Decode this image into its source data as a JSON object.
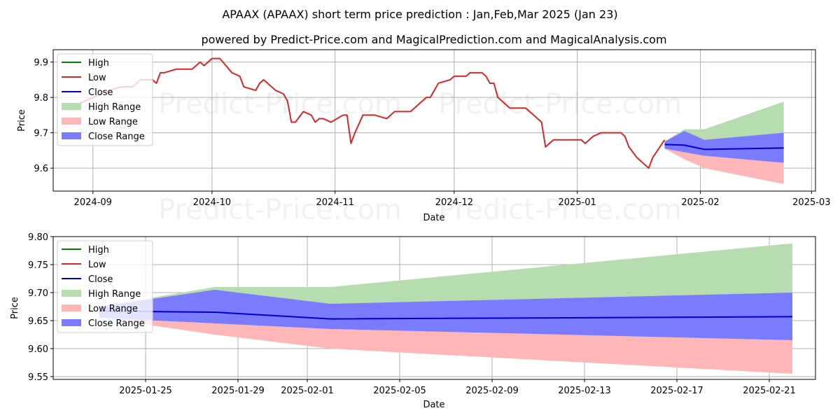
{
  "title_line1": "APAAX (APAAX) short term price prediction : Jan,Feb,Mar 2025 (Jan 23)",
  "title_line2": "powered by Predict-Price.com and MagicalPrediction.com and MagicalAnalysis.com",
  "watermark": "Predict-Price.com",
  "colors": {
    "high": "#008000",
    "low": "#d62728",
    "close": "#0000cd",
    "high_range": "#b6dcb0",
    "low_range": "#ffb6b6",
    "close_range": "#7b7bff"
  },
  "legend": [
    "High",
    "Low",
    "Close",
    "High Range",
    "Low Range",
    "Close Range"
  ],
  "chart_data": [
    {
      "type": "line",
      "xlabel": "Date",
      "ylabel": "Price",
      "ylim": [
        9.535,
        9.935
      ],
      "x_ticks": [
        "2024-09",
        "2024-10",
        "2024-11",
        "2024-12",
        "2025-01",
        "2025-02",
        "2025-03"
      ],
      "y_ticks": [
        "9.6",
        "9.7",
        "9.8",
        "9.9"
      ],
      "legend_position": "top-left",
      "grid": true,
      "series": [
        {
          "name": "Low",
          "x": [
            "2024-08-28",
            "2024-08-30",
            "2024-09-03",
            "2024-09-05",
            "2024-09-08",
            "2024-09-11",
            "2024-09-12",
            "2024-09-13",
            "2024-09-16",
            "2024-09-17",
            "2024-09-18",
            "2024-09-19",
            "2024-09-22",
            "2024-09-25",
            "2024-09-26",
            "2024-09-28",
            "2024-09-29",
            "2024-10-01",
            "2024-10-03",
            "2024-10-06",
            "2024-10-08",
            "2024-10-09",
            "2024-10-12",
            "2024-10-13",
            "2024-10-14",
            "2024-10-15",
            "2024-10-17",
            "2024-10-19",
            "2024-10-20",
            "2024-10-21",
            "2024-10-22",
            "2024-10-24",
            "2024-10-26",
            "2024-10-27",
            "2024-10-28",
            "2024-10-29",
            "2024-10-31",
            "2024-11-03",
            "2024-11-04",
            "2024-11-05",
            "2024-11-06",
            "2024-11-08",
            "2024-11-10",
            "2024-11-11",
            "2024-11-14",
            "2024-11-15",
            "2024-11-16",
            "2024-11-17",
            "2024-11-20",
            "2024-11-21",
            "2024-11-24",
            "2024-11-25",
            "2024-11-26",
            "2024-11-27",
            "2024-11-30",
            "2024-12-01",
            "2024-12-04",
            "2024-12-05",
            "2024-12-08",
            "2024-12-09",
            "2024-12-10",
            "2024-12-11",
            "2024-12-12",
            "2024-12-15",
            "2024-12-16",
            "2024-12-17",
            "2024-12-19",
            "2024-12-20",
            "2024-12-23",
            "2024-12-24",
            "2024-12-26",
            "2024-12-27",
            "2024-12-28",
            "2025-01-02",
            "2025-01-03",
            "2025-01-05",
            "2025-01-07",
            "2025-01-10",
            "2025-01-12",
            "2025-01-13",
            "2025-01-14",
            "2025-01-16",
            "2025-01-17",
            "2025-01-19",
            "2025-01-20",
            "2025-01-23"
          ],
          "values": [
            9.78,
            9.79,
            9.81,
            9.82,
            9.83,
            9.83,
            9.84,
            9.85,
            9.85,
            9.84,
            9.87,
            9.87,
            9.88,
            9.88,
            9.88,
            9.9,
            9.89,
            9.91,
            9.91,
            9.87,
            9.86,
            9.83,
            9.82,
            9.84,
            9.85,
            9.84,
            9.82,
            9.81,
            9.79,
            9.73,
            9.73,
            9.76,
            9.75,
            9.73,
            9.74,
            9.74,
            9.73,
            9.75,
            9.75,
            9.67,
            9.7,
            9.75,
            9.75,
            9.75,
            9.74,
            9.75,
            9.76,
            9.76,
            9.76,
            9.77,
            9.8,
            9.8,
            9.82,
            9.84,
            9.85,
            9.86,
            9.86,
            9.87,
            9.87,
            9.86,
            9.84,
            9.84,
            9.8,
            9.77,
            9.77,
            9.77,
            9.77,
            9.76,
            9.73,
            9.66,
            9.68,
            9.68,
            9.68,
            9.68,
            9.67,
            9.69,
            9.7,
            9.7,
            9.7,
            9.69,
            9.66,
            9.63,
            9.62,
            9.6,
            9.63,
            9.68
          ]
        },
        {
          "name": "Close",
          "x": [
            "2025-01-23",
            "2025-01-28",
            "2025-02-02",
            "2025-02-22"
          ],
          "values": [
            9.667,
            9.665,
            9.653,
            9.657
          ]
        }
      ],
      "ranges": [
        {
          "name": "High Range",
          "x": [
            "2025-01-23",
            "2025-01-28",
            "2025-02-02",
            "2025-02-22"
          ],
          "upper": [
            9.675,
            9.71,
            9.71,
            9.788
          ],
          "lower": [
            9.675,
            9.7,
            9.68,
            9.7
          ]
        },
        {
          "name": "Low Range",
          "x": [
            "2025-01-23",
            "2025-01-28",
            "2025-02-02",
            "2025-02-22"
          ],
          "upper": [
            9.655,
            9.645,
            9.635,
            9.615
          ],
          "lower": [
            9.655,
            9.625,
            9.6,
            9.555
          ]
        },
        {
          "name": "Close Range",
          "x": [
            "2025-01-23",
            "2025-01-28",
            "2025-02-02",
            "2025-02-22"
          ],
          "upper": [
            9.675,
            9.705,
            9.68,
            9.7
          ],
          "lower": [
            9.655,
            9.645,
            9.635,
            9.615
          ]
        }
      ]
    },
    {
      "type": "line",
      "xlabel": "Date",
      "ylabel": "Price",
      "ylim": [
        9.545,
        9.8
      ],
      "x_ticks": [
        "2025-01-25",
        "2025-01-29",
        "2025-02-01",
        "2025-02-05",
        "2025-02-09",
        "2025-02-13",
        "2025-02-17",
        "2025-02-21"
      ],
      "y_ticks": [
        "9.55",
        "9.60",
        "9.65",
        "9.70",
        "9.75",
        "9.80"
      ],
      "legend_position": "top-left",
      "grid": true,
      "series": [
        {
          "name": "Close",
          "x": [
            "2025-01-23",
            "2025-01-28",
            "2025-02-02",
            "2025-02-22"
          ],
          "values": [
            9.667,
            9.665,
            9.653,
            9.657
          ]
        }
      ],
      "ranges": [
        {
          "name": "High Range",
          "x": [
            "2025-01-23",
            "2025-01-28",
            "2025-02-02",
            "2025-02-22"
          ],
          "upper": [
            9.675,
            9.71,
            9.71,
            9.788
          ],
          "lower": [
            9.675,
            9.7,
            9.68,
            9.7
          ]
        },
        {
          "name": "Low Range",
          "x": [
            "2025-01-23",
            "2025-01-28",
            "2025-02-02",
            "2025-02-22"
          ],
          "upper": [
            9.655,
            9.645,
            9.635,
            9.615
          ],
          "lower": [
            9.655,
            9.625,
            9.6,
            9.555
          ]
        },
        {
          "name": "Close Range",
          "x": [
            "2025-01-23",
            "2025-01-28",
            "2025-02-02",
            "2025-02-22"
          ],
          "upper": [
            9.675,
            9.705,
            9.68,
            9.7
          ],
          "lower": [
            9.655,
            9.645,
            9.635,
            9.615
          ]
        }
      ]
    }
  ]
}
